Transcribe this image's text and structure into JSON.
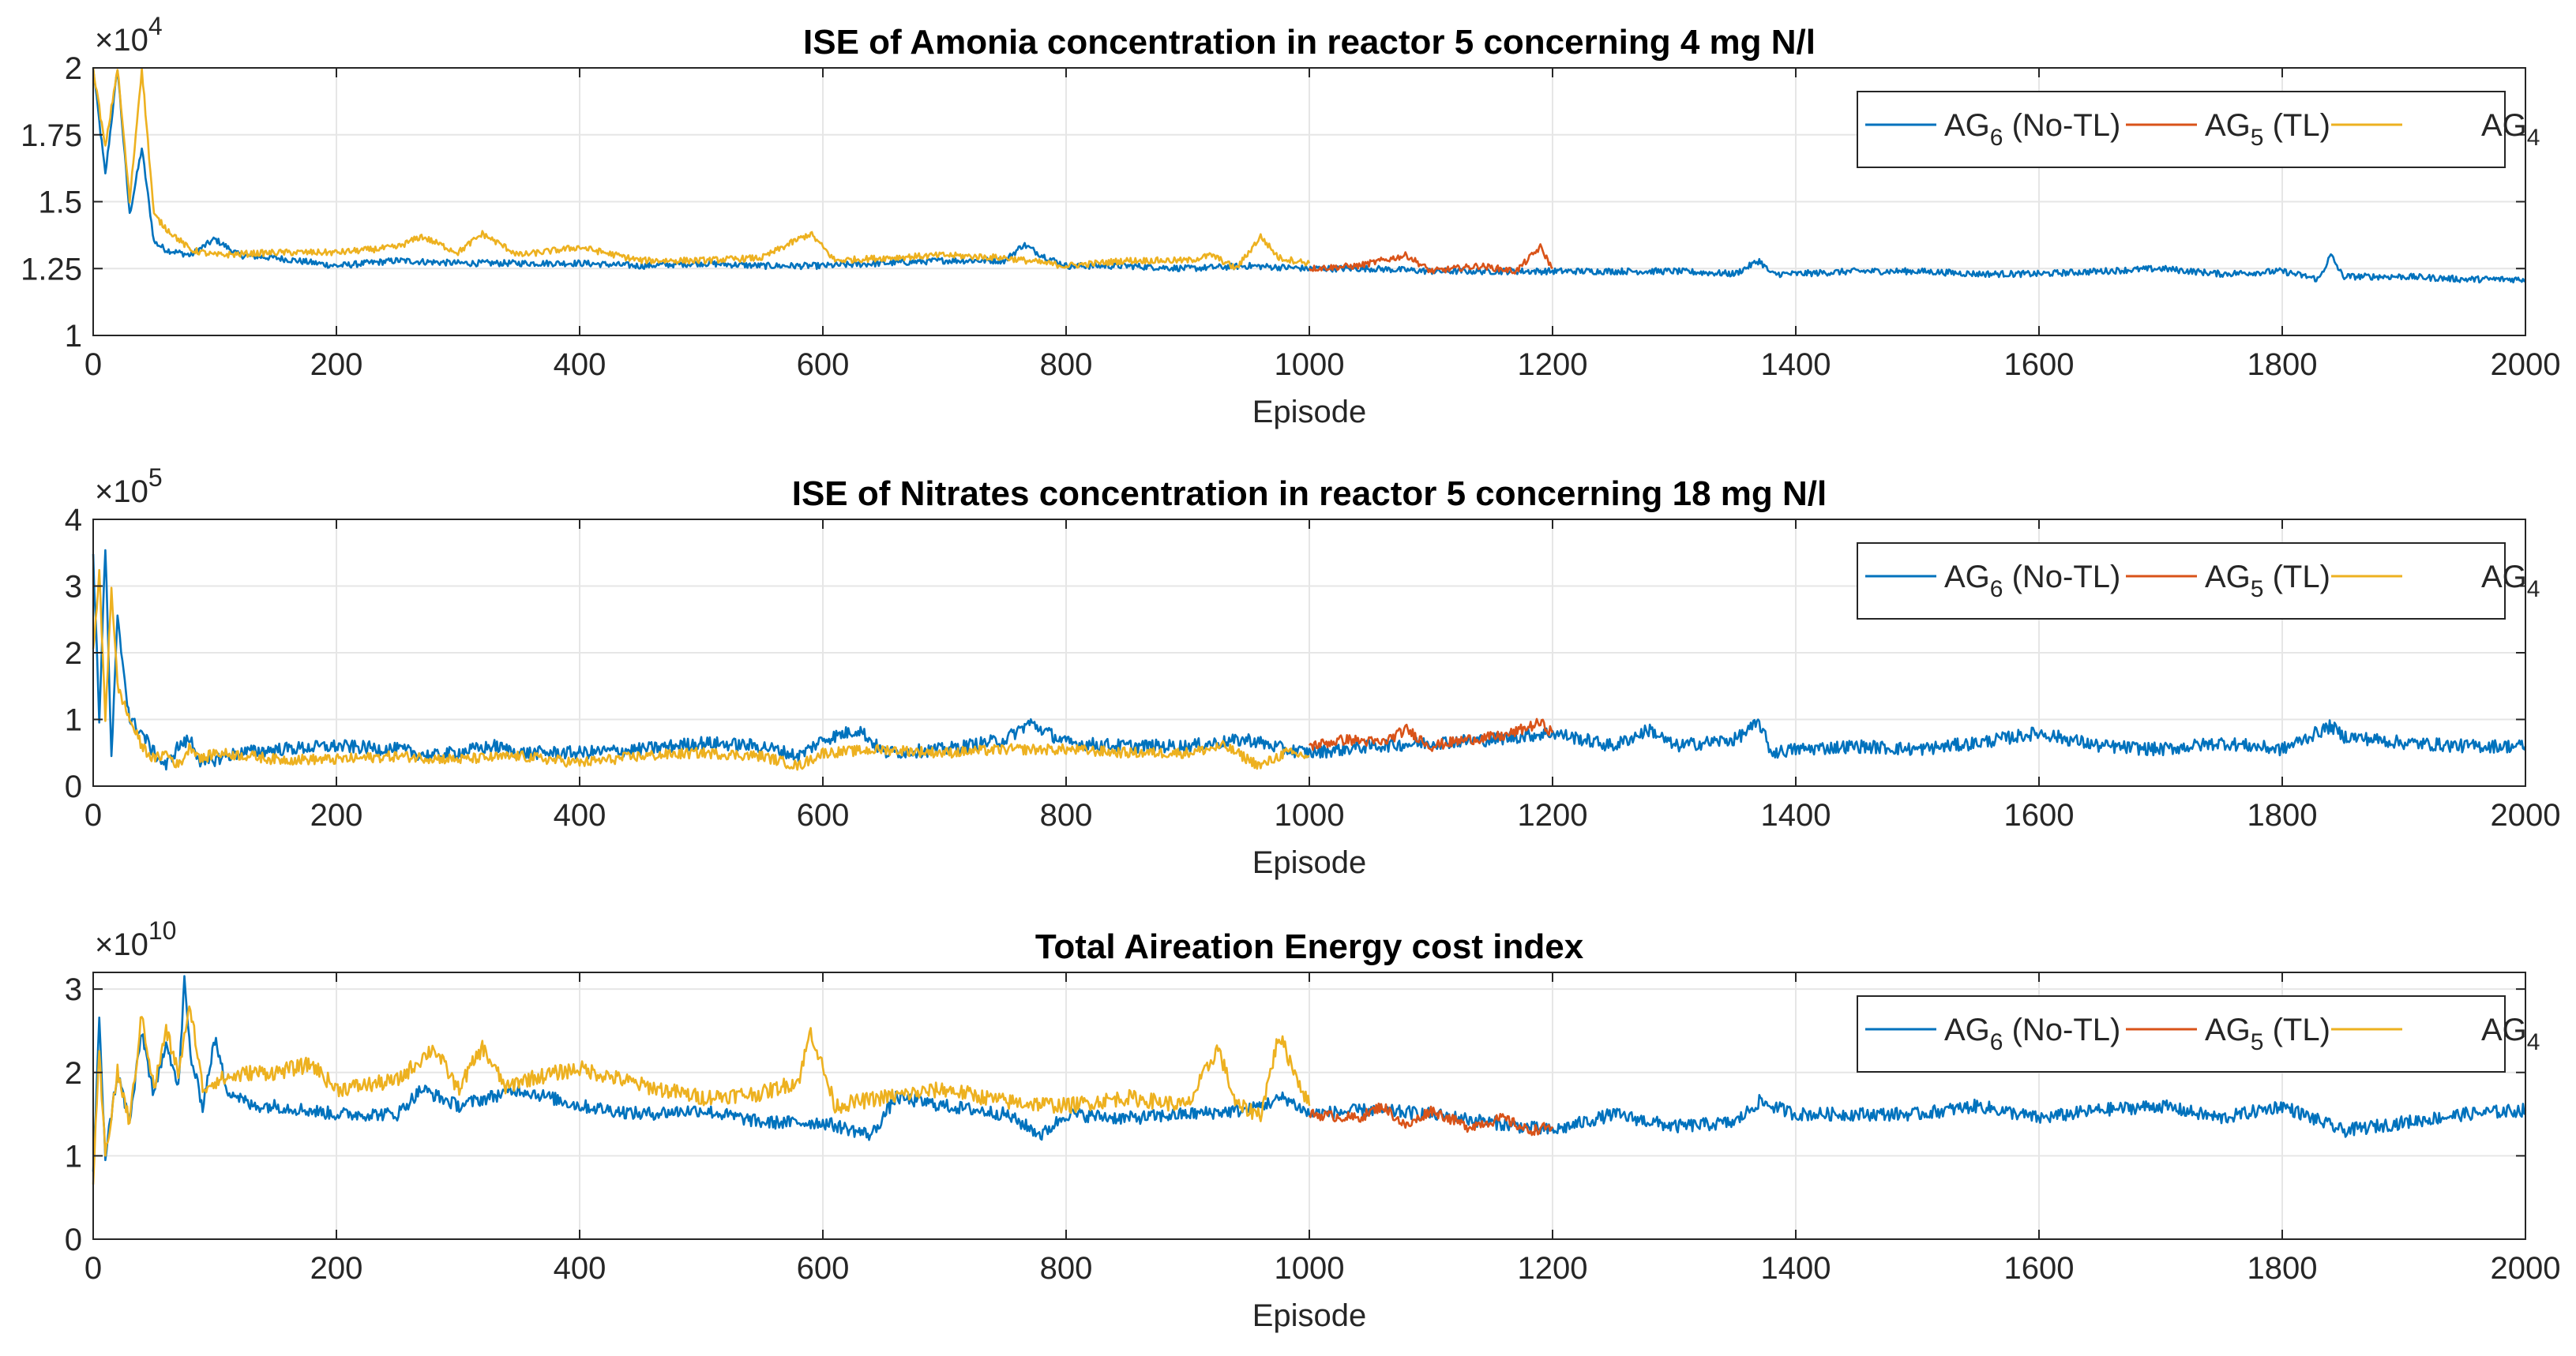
{
  "figure": {
    "shared_xlabel": "Episode"
  },
  "colors": {
    "ag6": "#0072BD",
    "ag5": "#D95319",
    "ag4": "#EDB120",
    "grid": "#e6e6e6",
    "axis": "#262626"
  },
  "chart_data": [
    {
      "type": "line",
      "title": "ISE of Amonia concentration in reactor 5 concerning 4 mg N/l",
      "xlabel": "Episode",
      "ylabel": "",
      "exponent_base": "×10",
      "exponent_power": "4",
      "xlim": [
        0,
        2000
      ],
      "ylim": [
        1,
        2
      ],
      "xticks": [
        0,
        200,
        400,
        600,
        800,
        1000,
        1200,
        1400,
        1600,
        1800,
        2000
      ],
      "xtick_labels": [
        "0",
        "200",
        "400",
        "600",
        "800",
        "1000",
        "1200",
        "1400",
        "1600",
        "1800",
        "2000"
      ],
      "yticks": [
        1,
        1.25,
        1.5,
        1.75,
        2
      ],
      "ytick_labels": [
        "1",
        "1.25",
        "1.5",
        "1.75",
        "2"
      ],
      "grid": true,
      "legend_position": "top-right",
      "legend": [
        {
          "base": "AG",
          "sub": "6",
          "suffix": " (No-TL)"
        },
        {
          "base": "AG",
          "sub": "5",
          "suffix": " (TL)"
        },
        {
          "base": "AG",
          "sub": "4",
          "suffix": ""
        }
      ],
      "series": [
        {
          "name": "AG6 (No-TL)",
          "color_key": "ag6",
          "x": [
            0,
            10,
            20,
            30,
            40,
            50,
            60,
            80,
            100,
            120,
            150,
            200,
            250,
            300,
            350,
            400,
            450,
            500,
            550,
            600,
            650,
            700,
            750,
            765,
            780,
            800,
            850,
            900,
            950,
            1000,
            1050,
            1100,
            1150,
            1200,
            1250,
            1300,
            1350,
            1370,
            1380,
            1400,
            1450,
            1500,
            1550,
            1600,
            1650,
            1700,
            1750,
            1800,
            1830,
            1840,
            1850,
            1900,
            1950,
            2000
          ],
          "y": [
            2.0,
            1.6,
            2.0,
            1.45,
            1.7,
            1.35,
            1.32,
            1.3,
            1.36,
            1.3,
            1.29,
            1.26,
            1.28,
            1.27,
            1.27,
            1.27,
            1.26,
            1.27,
            1.26,
            1.26,
            1.27,
            1.28,
            1.28,
            1.34,
            1.3,
            1.26,
            1.26,
            1.25,
            1.26,
            1.25,
            1.25,
            1.24,
            1.24,
            1.24,
            1.24,
            1.24,
            1.23,
            1.28,
            1.23,
            1.23,
            1.24,
            1.24,
            1.23,
            1.23,
            1.24,
            1.25,
            1.23,
            1.24,
            1.21,
            1.3,
            1.22,
            1.22,
            1.21,
            1.21
          ],
          "noise": 0.012
        },
        {
          "name": "AG5 (TL)",
          "color_key": "ag5",
          "x": [
            1000,
            1040,
            1080,
            1100,
            1140,
            1170,
            1190,
            1200
          ],
          "y": [
            1.25,
            1.26,
            1.3,
            1.24,
            1.26,
            1.24,
            1.33,
            1.25
          ],
          "noise": 0.012
        },
        {
          "name": "AG4",
          "color_key": "ag4",
          "x": [
            0,
            10,
            20,
            30,
            40,
            50,
            60,
            80,
            100,
            150,
            200,
            250,
            270,
            300,
            320,
            350,
            400,
            450,
            500,
            550,
            580,
            590,
            610,
            650,
            700,
            750,
            800,
            850,
            900,
            920,
            940,
            960,
            975,
            1000
          ],
          "y": [
            2.0,
            1.7,
            2.0,
            1.5,
            2.0,
            1.45,
            1.4,
            1.32,
            1.3,
            1.31,
            1.31,
            1.33,
            1.37,
            1.31,
            1.38,
            1.3,
            1.33,
            1.28,
            1.28,
            1.29,
            1.36,
            1.38,
            1.28,
            1.29,
            1.3,
            1.29,
            1.26,
            1.28,
            1.28,
            1.3,
            1.25,
            1.37,
            1.29,
            1.27
          ],
          "noise": 0.012
        }
      ]
    },
    {
      "type": "line",
      "title": "ISE of Nitrates concentration in reactor 5 concerning 18 mg N/l",
      "xlabel": "Episode",
      "ylabel": "",
      "exponent_base": "×10",
      "exponent_power": "5",
      "xlim": [
        0,
        2000
      ],
      "ylim": [
        0,
        4
      ],
      "xticks": [
        0,
        200,
        400,
        600,
        800,
        1000,
        1200,
        1400,
        1600,
        1800,
        2000
      ],
      "xtick_labels": [
        "0",
        "200",
        "400",
        "600",
        "800",
        "1000",
        "1200",
        "1400",
        "1600",
        "1800",
        "2000"
      ],
      "yticks": [
        0,
        1,
        2,
        3,
        4
      ],
      "ytick_labels": [
        "0",
        "1",
        "2",
        "3",
        "4"
      ],
      "grid": true,
      "legend_position": "top-right",
      "legend": [
        {
          "base": "AG",
          "sub": "6",
          "suffix": " (No-TL)"
        },
        {
          "base": "AG",
          "sub": "5",
          "suffix": " (TL)"
        },
        {
          "base": "AG",
          "sub": "4",
          "suffix": ""
        }
      ],
      "series": [
        {
          "name": "AG6 (No-TL)",
          "color_key": "ag6",
          "x": [
            0,
            5,
            10,
            15,
            20,
            30,
            40,
            50,
            60,
            70,
            80,
            90,
            100,
            120,
            150,
            200,
            250,
            280,
            330,
            350,
            400,
            450,
            500,
            550,
            580,
            600,
            630,
            650,
            700,
            750,
            770,
            800,
            850,
            900,
            950,
            980,
            1000,
            1050,
            1100,
            1150,
            1200,
            1250,
            1280,
            1300,
            1350,
            1370,
            1380,
            1400,
            1450,
            1500,
            1550,
            1600,
            1650,
            1700,
            1750,
            1800,
            1840,
            1850,
            1900,
            1950,
            2000
          ],
          "y": [
            3.5,
            1.0,
            3.6,
            0.4,
            2.5,
            1.0,
            0.8,
            0.5,
            0.3,
            0.6,
            0.7,
            0.3,
            0.4,
            0.5,
            0.55,
            0.6,
            0.55,
            0.45,
            0.6,
            0.5,
            0.5,
            0.55,
            0.65,
            0.6,
            0.45,
            0.7,
            0.85,
            0.5,
            0.55,
            0.7,
            0.95,
            0.65,
            0.6,
            0.6,
            0.7,
            0.55,
            0.5,
            0.6,
            0.65,
            0.7,
            0.8,
            0.6,
            0.85,
            0.6,
            0.7,
            0.95,
            0.5,
            0.55,
            0.6,
            0.55,
            0.65,
            0.8,
            0.6,
            0.55,
            0.65,
            0.55,
            0.9,
            0.75,
            0.65,
            0.6,
            0.6
          ],
          "noise": 0.025
        },
        {
          "name": "AG5 (TL)",
          "color_key": "ag5",
          "x": [
            1000,
            1030,
            1060,
            1080,
            1100,
            1130,
            1160,
            1190,
            1200
          ],
          "y": [
            0.6,
            0.7,
            0.65,
            0.85,
            0.6,
            0.7,
            0.75,
            0.95,
            0.8
          ],
          "noise": 0.02
        },
        {
          "name": "AG4",
          "color_key": "ag4",
          "x": [
            0,
            5,
            10,
            15,
            20,
            30,
            40,
            50,
            60,
            70,
            80,
            90,
            100,
            130,
            150,
            200,
            250,
            300,
            350,
            400,
            450,
            500,
            550,
            580,
            600,
            650,
            700,
            750,
            800,
            850,
            900,
            930,
            960,
            980,
            1000
          ],
          "y": [
            2.0,
            3.2,
            1.0,
            3.0,
            1.5,
            1.0,
            0.6,
            0.4,
            0.5,
            0.3,
            0.6,
            0.4,
            0.5,
            0.45,
            0.4,
            0.4,
            0.45,
            0.4,
            0.45,
            0.35,
            0.45,
            0.5,
            0.45,
            0.3,
            0.5,
            0.55,
            0.5,
            0.55,
            0.55,
            0.5,
            0.5,
            0.6,
            0.3,
            0.5,
            0.45
          ],
          "noise": 0.02
        }
      ]
    },
    {
      "type": "line",
      "title": "Total Aireation Energy cost index",
      "xlabel": "Episode",
      "ylabel": "",
      "exponent_base": "×10",
      "exponent_power": "10",
      "xlim": [
        0,
        2000
      ],
      "ylim": [
        0,
        3.2
      ],
      "xticks": [
        0,
        200,
        400,
        600,
        800,
        1000,
        1200,
        1400,
        1600,
        1800,
        2000
      ],
      "xtick_labels": [
        "0",
        "200",
        "400",
        "600",
        "800",
        "1000",
        "1200",
        "1400",
        "1600",
        "1800",
        "2000"
      ],
      "yticks": [
        0,
        1,
        2,
        3
      ],
      "ytick_labels": [
        "0",
        "1",
        "2",
        "3"
      ],
      "grid": true,
      "legend_position": "top-right",
      "legend": [
        {
          "base": "AG",
          "sub": "6",
          "suffix": " (No-TL)"
        },
        {
          "base": "AG",
          "sub": "5",
          "suffix": " (TL)"
        },
        {
          "base": "AG",
          "sub": "4",
          "suffix": ""
        }
      ],
      "series": [
        {
          "name": "AG6 (No-TL)",
          "color_key": "ag6",
          "x": [
            0,
            5,
            10,
            20,
            30,
            40,
            50,
            60,
            70,
            75,
            80,
            90,
            100,
            110,
            130,
            150,
            200,
            250,
            270,
            300,
            350,
            400,
            450,
            500,
            550,
            600,
            640,
            660,
            700,
            750,
            780,
            800,
            850,
            900,
            950,
            980,
            1000,
            1050,
            1100,
            1150,
            1200,
            1250,
            1300,
            1350,
            1370,
            1400,
            1450,
            1500,
            1550,
            1600,
            1650,
            1700,
            1750,
            1800,
            1850,
            1900,
            1950,
            2000
          ],
          "y": [
            0.8,
            2.6,
            1.0,
            2.0,
            1.4,
            2.5,
            1.7,
            2.4,
            1.8,
            3.1,
            2.2,
            1.6,
            2.4,
            1.8,
            1.6,
            1.6,
            1.5,
            1.5,
            1.8,
            1.6,
            1.8,
            1.6,
            1.5,
            1.55,
            1.4,
            1.4,
            1.25,
            1.7,
            1.6,
            1.5,
            1.25,
            1.5,
            1.45,
            1.5,
            1.55,
            1.7,
            1.5,
            1.55,
            1.5,
            1.4,
            1.3,
            1.5,
            1.35,
            1.4,
            1.65,
            1.5,
            1.5,
            1.5,
            1.6,
            1.45,
            1.55,
            1.6,
            1.45,
            1.6,
            1.3,
            1.4,
            1.5,
            1.55
          ],
          "noise": 0.025
        },
        {
          "name": "AG5 (TL)",
          "color_key": "ag5",
          "x": [
            1000,
            1040,
            1060,
            1080,
            1100,
            1130,
            1160,
            1180,
            1200
          ],
          "y": [
            1.5,
            1.45,
            1.6,
            1.35,
            1.55,
            1.35,
            1.45,
            1.3,
            1.35
          ],
          "noise": 0.02
        },
        {
          "name": "AG4",
          "color_key": "ag4",
          "x": [
            0,
            5,
            10,
            20,
            30,
            40,
            50,
            60,
            70,
            80,
            90,
            100,
            130,
            150,
            180,
            200,
            250,
            280,
            300,
            320,
            340,
            350,
            400,
            450,
            500,
            550,
            580,
            590,
            610,
            650,
            700,
            750,
            800,
            850,
            900,
            925,
            940,
            960,
            975,
            1000
          ],
          "y": [
            0.7,
            2.2,
            1.0,
            2.0,
            1.4,
            2.7,
            1.8,
            2.5,
            2.0,
            2.8,
            1.8,
            1.9,
            2.0,
            2.0,
            2.1,
            1.8,
            1.9,
            2.3,
            1.8,
            2.3,
            1.8,
            1.9,
            2.05,
            1.85,
            1.7,
            1.75,
            1.9,
            2.5,
            1.6,
            1.7,
            1.8,
            1.65,
            1.6,
            1.7,
            1.6,
            2.3,
            1.6,
            1.5,
            2.45,
            1.6
          ],
          "noise": 0.03
        }
      ]
    }
  ]
}
